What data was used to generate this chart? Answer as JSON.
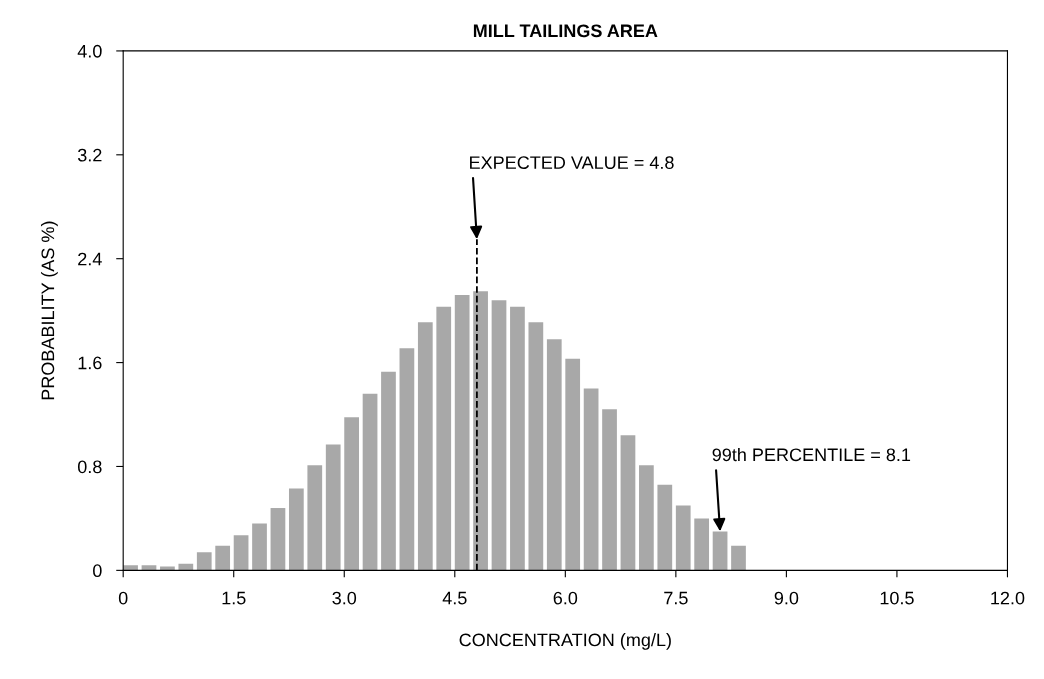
{
  "chart_data": {
    "type": "histogram",
    "title": "MILL TAILINGS AREA",
    "xlabel": "CONCENTRATION (mg/L)",
    "ylabel": "PROBABILITY (AS %)",
    "bins": [
      0,
      0.25,
      0.5,
      0.75,
      1.0,
      1.25,
      1.5,
      1.75,
      2.0,
      2.25,
      2.5,
      2.75,
      3.0,
      3.25,
      3.5,
      3.75,
      4.0,
      4.25,
      4.5,
      4.75,
      5.0,
      5.25,
      5.5,
      5.75,
      6.0,
      6.25,
      6.5,
      6.75,
      7.0,
      7.25,
      7.5,
      7.75,
      8.0,
      8.25,
      8.5
    ],
    "values": [
      0.04,
      0.04,
      0.03,
      0.05,
      0.14,
      0.19,
      0.27,
      0.36,
      0.48,
      0.63,
      0.81,
      0.97,
      1.18,
      1.36,
      1.53,
      1.71,
      1.91,
      2.03,
      2.12,
      2.15,
      2.08,
      2.03,
      1.91,
      1.78,
      1.63,
      1.4,
      1.24,
      1.04,
      0.81,
      0.66,
      0.5,
      0.4,
      0.3,
      0.19
    ],
    "color": "#a8a8a8",
    "xlim": [
      0,
      12
    ],
    "xticks": [
      0,
      1.5,
      {
        "value": 3,
        "label": "3.0"
      },
      4.5,
      {
        "value": 6,
        "label": "6.0"
      },
      7.5,
      {
        "value": 9,
        "label": "9.0"
      },
      10.5,
      {
        "value": 12,
        "label": "12.0"
      }
    ],
    "ylim": [
      0,
      4
    ],
    "yticks": [
      0,
      0.8,
      1.6,
      2.4,
      3.2,
      {
        "value": 4,
        "label": "4.0"
      }
    ],
    "ref_lines": [
      {
        "axis": "x",
        "value": 4.8,
        "line_style": "dashed",
        "color": "#000000"
      }
    ],
    "annotations": [
      {
        "text": "EXPECTED VALUE = 4.8",
        "x": 4.8,
        "y": 2.55
      },
      {
        "text": "99th PERCENTILE = 8.1",
        "x": 8.1,
        "y": 0.3
      }
    ],
    "grid": false
  }
}
